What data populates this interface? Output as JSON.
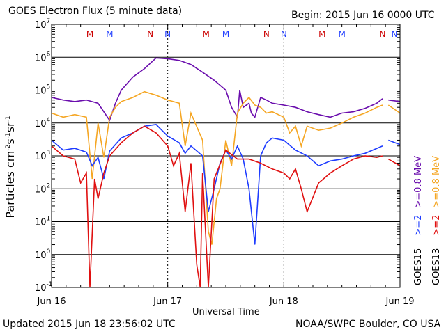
{
  "header": {
    "title": "GOES Electron Flux (5 minute data)",
    "begin": "Begin: 2015 Jun 16 0000 UTC"
  },
  "footer": {
    "updated": "Updated 2015 Jun 18 23:56:02 UTC",
    "credit": "NOAA/SWPC Boulder, CO USA"
  },
  "colors": {
    "goes15_08": "#6a0dad",
    "goes15_2": "#1e3cff",
    "goes13_08": "#f5a623",
    "goes13_2": "#e01010",
    "marker_m": "#cc0000",
    "marker_n_goes13": "#cc0000",
    "marker_n_goes15": "#1e3cff",
    "marker_m_goes15": "#1e3cff"
  },
  "chart_data": {
    "type": "line",
    "title": "GOES Electron Flux (5 minute data)",
    "xlabel": "Universal Time",
    "ylabel": "Particles cm⁻²s⁻¹sr⁻¹",
    "yscale": "log",
    "ylim": [
      0.1,
      10000000
    ],
    "y_ticks": [
      {
        "value": 0.1,
        "base": "10",
        "exp": "-1"
      },
      {
        "value": 1,
        "base": "10",
        "exp": "0"
      },
      {
        "value": 10,
        "base": "10",
        "exp": "1"
      },
      {
        "value": 100,
        "base": "10",
        "exp": "2"
      },
      {
        "value": 1000,
        "base": "10",
        "exp": "3"
      },
      {
        "value": 10000,
        "base": "10",
        "exp": "4"
      },
      {
        "value": 100000,
        "base": "10",
        "exp": "5"
      },
      {
        "value": 1000000,
        "base": "10",
        "exp": "6"
      },
      {
        "value": 10000000,
        "base": "10",
        "exp": "7"
      }
    ],
    "x_ticks": [
      "Jun 16",
      "Jun 17",
      "Jun 18",
      "Jun 19"
    ],
    "xlim_days": [
      0,
      3
    ],
    "grid": "horizontal lines at each decade",
    "threshold_line": 1000,
    "markers": [
      {
        "label": "M",
        "x": 0.33,
        "color": "#cc0000"
      },
      {
        "label": "M",
        "x": 0.5,
        "color": "#1e3cff"
      },
      {
        "label": "N",
        "x": 0.85,
        "color": "#cc0000"
      },
      {
        "label": "N",
        "x": 1.0,
        "color": "#1e3cff"
      },
      {
        "label": "M",
        "x": 1.33,
        "color": "#cc0000"
      },
      {
        "label": "M",
        "x": 1.5,
        "color": "#1e3cff"
      },
      {
        "label": "N",
        "x": 1.85,
        "color": "#cc0000"
      },
      {
        "label": "N",
        "x": 2.0,
        "color": "#1e3cff"
      },
      {
        "label": "M",
        "x": 2.33,
        "color": "#cc0000"
      },
      {
        "label": "M",
        "x": 2.5,
        "color": "#1e3cff"
      },
      {
        "label": "N",
        "x": 2.85,
        "color": "#cc0000"
      },
      {
        "label": "N",
        "x": 3.0,
        "color": "#1e3cff"
      }
    ],
    "legend": [
      {
        "label": "GOES15",
        "color": "#000000"
      },
      {
        "label": ">=2",
        "color": "#1e3cff"
      },
      {
        "label": ">=0.8  MeV",
        "color": "#6a0dad"
      },
      {
        "label": "GOES13",
        "color": "#000000"
      },
      {
        "label": ">=2",
        "color": "#e01010"
      },
      {
        "label": ">=0.8  MeV",
        "color": "#f5a623"
      }
    ],
    "series": [
      {
        "name": "GOES15 >=0.8 MeV",
        "color": "#6a0dad",
        "x": [
          0,
          0.1,
          0.2,
          0.3,
          0.4,
          0.5,
          0.55,
          0.6,
          0.7,
          0.8,
          0.9,
          1.0,
          1.1,
          1.2,
          1.3,
          1.4,
          1.5,
          1.55,
          1.6,
          1.62,
          1.65,
          1.7,
          1.72,
          1.75,
          1.8,
          1.85,
          1.9,
          2.0,
          2.1,
          2.2,
          2.3,
          2.4,
          2.5,
          2.6,
          2.7,
          2.8,
          2.85,
          null,
          2.9,
          3.0
        ],
        "y": [
          60000,
          50000,
          45000,
          50000,
          40000,
          12000,
          40000,
          100000,
          250000,
          450000,
          950000,
          900000,
          800000,
          600000,
          350000,
          200000,
          100000,
          30000,
          15000,
          100000,
          30000,
          40000,
          20000,
          15000,
          60000,
          50000,
          40000,
          35000,
          30000,
          22000,
          18000,
          15000,
          20000,
          22000,
          28000,
          40000,
          55000,
          null,
          50000,
          45000
        ]
      },
      {
        "name": "GOES13 >=0.8 MeV",
        "color": "#f5a623",
        "x": [
          0,
          0.1,
          0.2,
          0.3,
          0.35,
          0.4,
          0.45,
          0.5,
          0.55,
          0.6,
          0.7,
          0.8,
          0.9,
          1.0,
          1.1,
          1.15,
          1.2,
          1.3,
          1.35,
          1.38,
          1.42,
          1.45,
          1.5,
          1.55,
          1.6,
          1.65,
          1.7,
          1.75,
          1.8,
          1.85,
          1.9,
          2.0,
          2.05,
          2.1,
          2.15,
          2.2,
          2.3,
          2.4,
          2.5,
          2.6,
          2.7,
          2.8,
          2.85,
          null,
          2.9,
          3.0
        ],
        "y": [
          20000,
          15000,
          18000,
          15000,
          200,
          10000,
          900,
          15000,
          30000,
          45000,
          60000,
          90000,
          70000,
          50000,
          40000,
          2000,
          20000,
          3000,
          5,
          2,
          50,
          100,
          3000,
          500,
          20000,
          40000,
          60000,
          35000,
          30000,
          20000,
          22000,
          15000,
          5000,
          8000,
          2000,
          8000,
          6000,
          7000,
          10000,
          15000,
          20000,
          30000,
          35000,
          null,
          35000,
          20000
        ]
      },
      {
        "name": "GOES15 >=2 MeV",
        "color": "#1e3cff",
        "x": [
          0,
          0.1,
          0.2,
          0.3,
          0.35,
          0.4,
          0.45,
          0.5,
          0.6,
          0.7,
          0.8,
          0.9,
          1.0,
          1.1,
          1.15,
          1.2,
          1.3,
          1.35,
          1.4,
          1.45,
          1.5,
          1.55,
          1.6,
          1.65,
          1.7,
          1.75,
          1.8,
          1.85,
          1.9,
          2.0,
          2.1,
          2.2,
          2.3,
          2.4,
          2.5,
          2.6,
          2.7,
          2.85,
          null,
          2.9,
          3.0
        ],
        "y": [
          3000,
          1500,
          1700,
          1300,
          500,
          900,
          200,
          1400,
          3500,
          5000,
          8000,
          9000,
          4000,
          2500,
          1200,
          2000,
          1000,
          20,
          100,
          600,
          1500,
          800,
          2000,
          800,
          100,
          2,
          1000,
          2500,
          3500,
          3000,
          1500,
          1000,
          500,
          700,
          800,
          1000,
          1200,
          2000,
          null,
          3000,
          2200
        ]
      },
      {
        "name": "GOES13 >=2 MeV",
        "color": "#e01010",
        "x": [
          0,
          0.1,
          0.2,
          0.25,
          0.3,
          0.33,
          0.37,
          0.4,
          0.45,
          0.5,
          0.6,
          0.7,
          0.8,
          0.9,
          1.0,
          1.05,
          1.1,
          1.15,
          1.2,
          1.25,
          1.28,
          1.3,
          1.35,
          1.4,
          1.5,
          1.6,
          1.7,
          1.8,
          1.9,
          2.0,
          2.05,
          2.1,
          2.15,
          2.2,
          2.3,
          2.4,
          2.5,
          2.6,
          2.7,
          2.8,
          2.85,
          null,
          2.9,
          3.0
        ],
        "y": [
          2000,
          1000,
          800,
          150,
          300,
          0.1,
          200,
          50,
          300,
          1000,
          2500,
          5000,
          8000,
          5000,
          2000,
          500,
          1200,
          20,
          600,
          0.5,
          0.1,
          300,
          0.1,
          200,
          1500,
          800,
          800,
          600,
          400,
          300,
          200,
          400,
          100,
          20,
          150,
          300,
          500,
          800,
          1000,
          900,
          1000,
          null,
          800,
          500
        ]
      }
    ]
  }
}
